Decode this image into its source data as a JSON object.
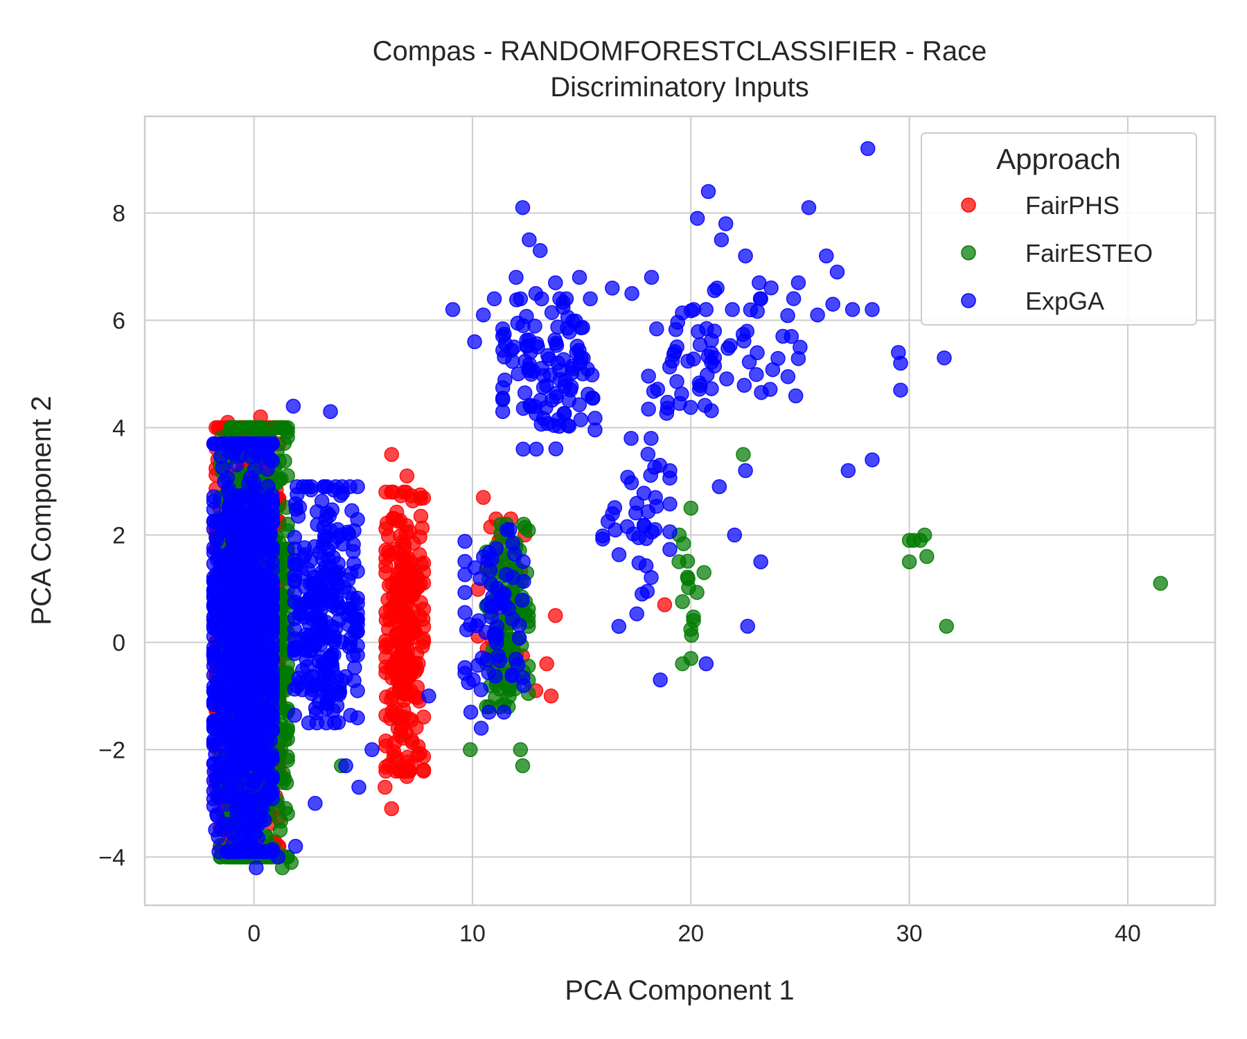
{
  "chart_data": {
    "type": "scatter",
    "title": [
      "Compas - RANDOMFORESTCLASSIFIER - Race",
      "Discriminatory Inputs"
    ],
    "xlabel": "PCA Component 1",
    "ylabel": "PCA Component 2",
    "xlim": [
      -5,
      44
    ],
    "ylim": [
      -4.9,
      9.8
    ],
    "xticks": [
      0,
      10,
      20,
      30,
      40
    ],
    "yticks": [
      -4,
      -2,
      0,
      2,
      4,
      6,
      8
    ],
    "xtick_labels": [
      "0",
      "10",
      "20",
      "30",
      "40"
    ],
    "ytick_labels": [
      "−4",
      "−2",
      "0",
      "2",
      "4",
      "6",
      "8"
    ],
    "grid": true,
    "legend": {
      "title": "Approach",
      "placement": "top-right"
    },
    "series": [
      {
        "name": "FairPHS",
        "color": "#ff0000",
        "clusters": [
          {
            "cx": -0.3,
            "cy": 0.1,
            "sx": 1.5,
            "sy": 3.9,
            "n": 700
          },
          {
            "cx": 6.9,
            "cy": 0.2,
            "sx": 0.9,
            "sy": 2.6,
            "n": 260
          },
          {
            "cx": 11.5,
            "cy": 0.8,
            "sx": 1.3,
            "sy": 1.5,
            "n": 30
          }
        ],
        "points": [
          [
            -1.2,
            4.1
          ],
          [
            0.3,
            4.2
          ],
          [
            6.3,
            3.5
          ],
          [
            7.0,
            3.1
          ],
          [
            10.5,
            2.7
          ],
          [
            6.0,
            -2.7
          ],
          [
            6.3,
            -3.1
          ],
          [
            7.0,
            -2.5
          ],
          [
            -0.6,
            -3.9
          ],
          [
            13.8,
            0.5
          ],
          [
            13.4,
            -0.4
          ],
          [
            12.9,
            -0.9
          ],
          [
            13.6,
            -1.0
          ],
          [
            18.8,
            0.7
          ],
          [
            12.4,
            2.0
          ]
        ]
      },
      {
        "name": "FairESTEO",
        "color": "#007a00",
        "clusters": [
          {
            "cx": 0.0,
            "cy": 0.0,
            "sx": 1.6,
            "sy": 4.0,
            "n": 760
          },
          {
            "cx": 11.6,
            "cy": 0.5,
            "sx": 1.0,
            "sy": 1.7,
            "n": 110
          },
          {
            "cx": 19.8,
            "cy": 0.8,
            "sx": 0.5,
            "sy": 1.2,
            "n": 14
          }
        ],
        "points": [
          [
            22.4,
            3.5
          ],
          [
            30.0,
            1.9
          ],
          [
            30.2,
            1.9
          ],
          [
            30.5,
            1.9
          ],
          [
            30.7,
            2.0
          ],
          [
            30.0,
            1.5
          ],
          [
            30.8,
            1.6
          ],
          [
            31.7,
            0.3
          ],
          [
            41.5,
            1.1
          ],
          [
            9.9,
            -2.0
          ],
          [
            12.3,
            -2.3
          ],
          [
            12.2,
            -2.0
          ],
          [
            1.3,
            -4.2
          ],
          [
            1.7,
            -4.1
          ],
          [
            4.0,
            -2.3
          ],
          [
            20.0,
            -0.3
          ],
          [
            20.6,
            1.3
          ],
          [
            20.0,
            2.5
          ]
        ]
      },
      {
        "name": "ExpGA",
        "color": "#0000ff",
        "clusters": [
          {
            "cx": -0.5,
            "cy": -0.1,
            "sx": 1.4,
            "sy": 3.8,
            "n": 900
          },
          {
            "cx": 3.3,
            "cy": 0.7,
            "sx": 1.5,
            "sy": 2.2,
            "n": 260
          },
          {
            "cx": 11.0,
            "cy": 0.4,
            "sx": 1.4,
            "sy": 1.7,
            "n": 70
          },
          {
            "cx": 13.5,
            "cy": 5.0,
            "sx": 2.2,
            "sy": 1.4,
            "n": 110
          },
          {
            "cx": 17.5,
            "cy": 2.0,
            "sx": 1.6,
            "sy": 1.8,
            "n": 40
          },
          {
            "cx": 19.5,
            "cy": 5.0,
            "sx": 1.5,
            "sy": 1.2,
            "n": 40
          },
          {
            "cx": 23.0,
            "cy": 5.5,
            "sx": 2.0,
            "sy": 1.2,
            "n": 30
          }
        ],
        "points": [
          [
            28.1,
            9.2
          ],
          [
            20.8,
            8.4
          ],
          [
            20.3,
            7.9
          ],
          [
            25.4,
            8.1
          ],
          [
            12.3,
            8.1
          ],
          [
            26.2,
            7.2
          ],
          [
            26.7,
            6.9
          ],
          [
            28.3,
            6.2
          ],
          [
            31.6,
            5.3
          ],
          [
            29.5,
            5.4
          ],
          [
            29.6,
            5.2
          ],
          [
            29.6,
            4.7
          ],
          [
            28.3,
            3.4
          ],
          [
            27.2,
            3.2
          ],
          [
            22.5,
            3.2
          ],
          [
            21.3,
            2.9
          ],
          [
            22.0,
            2.0
          ],
          [
            23.2,
            1.5
          ],
          [
            22.6,
            0.3
          ],
          [
            20.7,
            -0.4
          ],
          [
            18.6,
            -0.7
          ],
          [
            10.4,
            -1.6
          ],
          [
            8.0,
            -1.0
          ],
          [
            4.8,
            -2.7
          ],
          [
            5.4,
            -2.0
          ],
          [
            4.2,
            -2.3
          ],
          [
            2.8,
            -3.0
          ],
          [
            1.9,
            -3.8
          ],
          [
            0.1,
            -4.2
          ],
          [
            1.1,
            -4.0
          ],
          [
            1.8,
            4.4
          ],
          [
            3.5,
            4.3
          ],
          [
            9.1,
            6.2
          ],
          [
            10.1,
            5.6
          ],
          [
            10.5,
            6.1
          ],
          [
            11.0,
            6.4
          ],
          [
            12.0,
            6.8
          ],
          [
            12.2,
            6.4
          ],
          [
            12.9,
            6.5
          ],
          [
            13.8,
            6.7
          ],
          [
            14.9,
            6.8
          ],
          [
            16.4,
            6.6
          ],
          [
            17.3,
            6.5
          ],
          [
            18.2,
            6.8
          ],
          [
            21.2,
            6.6
          ],
          [
            21.9,
            6.2
          ],
          [
            23.2,
            6.4
          ],
          [
            25.8,
            6.1
          ],
          [
            26.5,
            6.3
          ],
          [
            27.4,
            6.2
          ],
          [
            21.6,
            7.8
          ],
          [
            21.4,
            7.5
          ],
          [
            22.5,
            7.2
          ],
          [
            24.6,
            5.7
          ],
          [
            25.0,
            5.5
          ],
          [
            13.1,
            7.3
          ],
          [
            12.6,
            7.5
          ]
        ]
      }
    ]
  }
}
